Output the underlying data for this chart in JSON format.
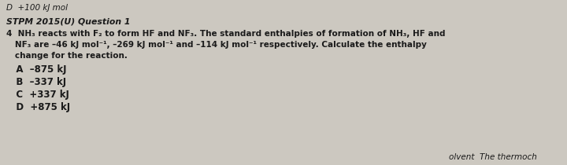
{
  "background_color": "#ccc8c0",
  "top_text": "D  +100 kJ mol",
  "header": "STPM 2015(U) Question 1",
  "line1": "4  NH₃ reacts with F₂ to form HF and NF₃. The standard enthalpies of formation of NH₃, HF and",
  "line2": "   NF₃ are –46 kJ mol⁻¹, –269 kJ mol⁻¹ and –114 kJ mol⁻¹ respectively. Calculate the enthalpy",
  "line3": "   change for the reaction.",
  "optionA": "   A  –875 kJ",
  "optionB": "   B  –337 kJ",
  "optionC": "   C  +337 kJ",
  "optionD": "   D  +875 kJ",
  "bottom_right": "olvent  The thermoch",
  "font_size_top": 7.5,
  "font_size_header": 7.8,
  "font_size_body": 7.5,
  "font_size_options": 8.5,
  "text_color": "#1a1a1a"
}
